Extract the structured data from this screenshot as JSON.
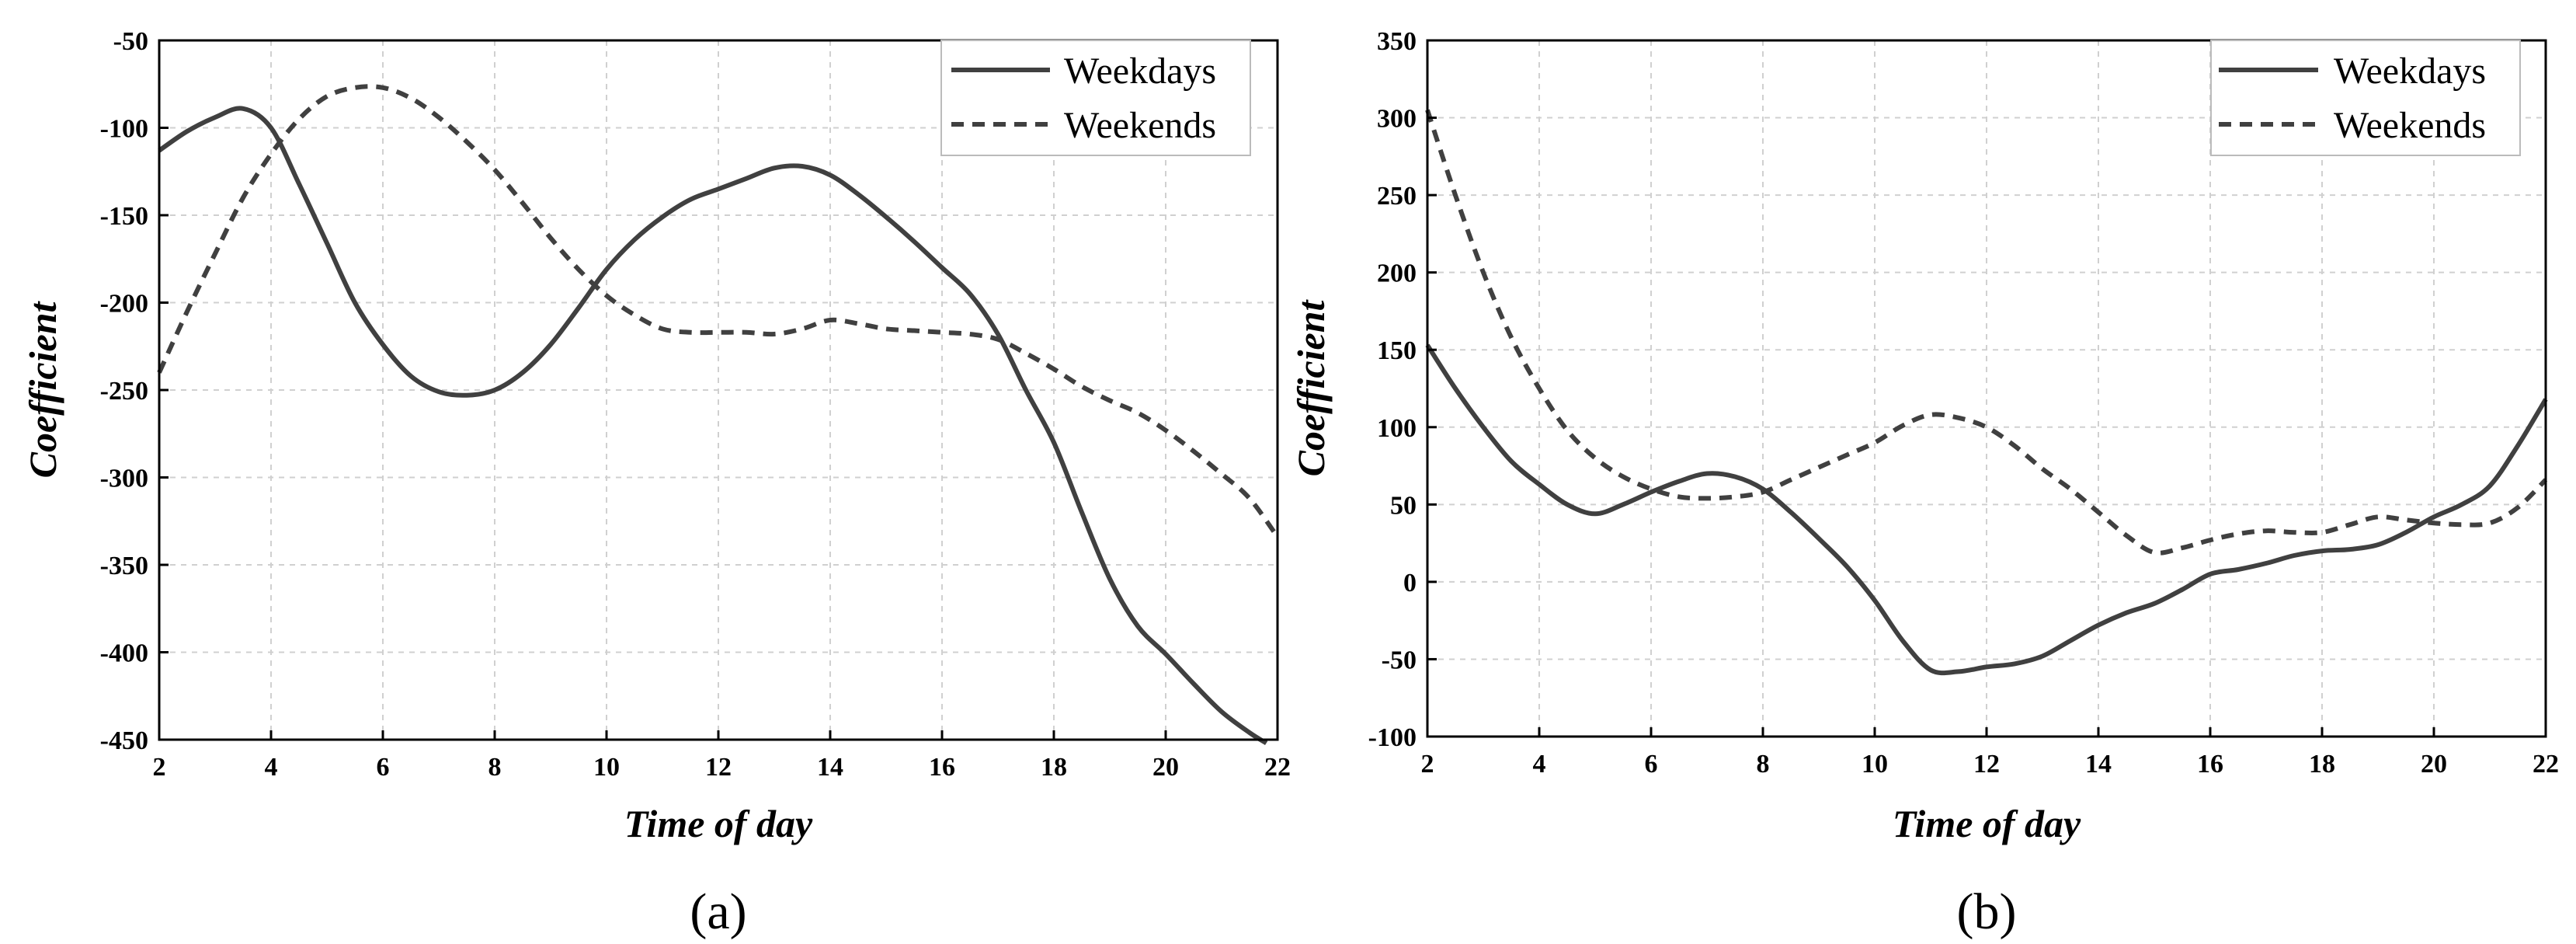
{
  "chart_data": [
    {
      "type": "line",
      "panel_label": "(a)",
      "xlabel": "Time of day",
      "ylabel": "Coefficient",
      "xlim": [
        2,
        22
      ],
      "ylim": [
        -450,
        -50
      ],
      "xticks": [
        2,
        4,
        6,
        8,
        10,
        12,
        14,
        16,
        18,
        20,
        22
      ],
      "yticks": [
        -50,
        -100,
        -150,
        -200,
        -250,
        -300,
        -350,
        -400,
        -450
      ],
      "grid": true,
      "legend_position": "top-right",
      "series": [
        {
          "name": "Weekdays",
          "style": "solid",
          "color": "#404040",
          "x": [
            2,
            2.5,
            3,
            3.5,
            4,
            4.5,
            5,
            5.5,
            6,
            6.5,
            7,
            7.5,
            8,
            8.5,
            9,
            9.5,
            10,
            10.5,
            11,
            11.5,
            12,
            12.5,
            13,
            13.5,
            14,
            14.5,
            15,
            15.5,
            16,
            16.5,
            17,
            17.5,
            18,
            18.5,
            19,
            19.5,
            20,
            20.5,
            21,
            21.5,
            21.8
          ],
          "values": [
            -113,
            -102,
            -94,
            -89,
            -100,
            -132,
            -166,
            -200,
            -224,
            -242,
            -251,
            -253,
            -250,
            -240,
            -224,
            -203,
            -181,
            -164,
            -151,
            -141,
            -135,
            -129,
            -123,
            -122,
            -127,
            -138,
            -151,
            -165,
            -180,
            -195,
            -218,
            -250,
            -280,
            -320,
            -358,
            -385,
            -401,
            -418,
            -434,
            -446,
            -452
          ]
        },
        {
          "name": "Weekends",
          "style": "dashed",
          "color": "#404040",
          "x": [
            2,
            2.5,
            3,
            3.5,
            4,
            4.5,
            5,
            5.5,
            6,
            6.5,
            7,
            7.5,
            8,
            8.5,
            9,
            9.5,
            10,
            10.5,
            11,
            11.5,
            12,
            12.5,
            13,
            13.5,
            14,
            14.5,
            15,
            15.5,
            16,
            16.5,
            17,
            17.5,
            18,
            18.5,
            19,
            19.5,
            20,
            20.5,
            21,
            21.5,
            22
          ],
          "values": [
            -240,
            -205,
            -172,
            -140,
            -115,
            -95,
            -82,
            -77,
            -77,
            -83,
            -94,
            -108,
            -124,
            -143,
            -163,
            -181,
            -196,
            -207,
            -215,
            -217,
            -217,
            -217,
            -218,
            -215,
            -210,
            -212,
            -215,
            -216,
            -217,
            -218,
            -221,
            -229,
            -238,
            -248,
            -256,
            -263,
            -273,
            -285,
            -298,
            -312,
            -334
          ]
        }
      ]
    },
    {
      "type": "line",
      "panel_label": "(b)",
      "xlabel": "Time of day",
      "ylabel": "Coefficient",
      "xlim": [
        2,
        22
      ],
      "ylim": [
        -100,
        350
      ],
      "xticks": [
        2,
        4,
        6,
        8,
        10,
        12,
        14,
        16,
        18,
        20,
        22
      ],
      "yticks": [
        350,
        300,
        250,
        200,
        150,
        100,
        50,
        0,
        -50,
        -100
      ],
      "grid": true,
      "legend_position": "top-right",
      "series": [
        {
          "name": "Weekdays",
          "style": "solid",
          "color": "#404040",
          "x": [
            2,
            2.5,
            3,
            3.5,
            4,
            4.5,
            5,
            5.5,
            6,
            6.5,
            7,
            7.5,
            8,
            8.5,
            9,
            9.5,
            10,
            10.5,
            11,
            11.5,
            12,
            12.5,
            13,
            13.5,
            14,
            14.5,
            15,
            15.5,
            16,
            16.5,
            17,
            17.5,
            18,
            18.5,
            19,
            19.5,
            20,
            20.5,
            21,
            21.5,
            22
          ],
          "values": [
            153,
            125,
            100,
            78,
            63,
            50,
            44,
            50,
            58,
            65,
            70,
            68,
            60,
            45,
            28,
            10,
            -12,
            -38,
            -57,
            -58,
            -55,
            -53,
            -48,
            -38,
            -28,
            -20,
            -14,
            -5,
            5,
            8,
            12,
            17,
            20,
            21,
            24,
            32,
            42,
            50,
            62,
            88,
            118
          ]
        },
        {
          "name": "Weekends",
          "style": "dashed",
          "color": "#404040",
          "x": [
            2,
            2.5,
            3,
            3.5,
            4,
            4.5,
            5,
            5.5,
            6,
            6.5,
            7,
            7.5,
            8,
            8.5,
            9,
            9.5,
            10,
            10.5,
            11,
            11.5,
            12,
            12.5,
            13,
            13.5,
            14,
            14.5,
            15,
            15.5,
            16,
            16.5,
            17,
            17.5,
            18,
            18.5,
            19,
            19.5,
            20,
            20.5,
            21,
            21.5,
            22
          ],
          "values": [
            305,
            250,
            200,
            158,
            125,
            98,
            80,
            68,
            60,
            55,
            54,
            55,
            58,
            66,
            74,
            82,
            90,
            101,
            108,
            106,
            100,
            88,
            73,
            60,
            45,
            30,
            19,
            22,
            27,
            31,
            33,
            32,
            32,
            37,
            42,
            40,
            38,
            37,
            38,
            48,
            66
          ]
        }
      ]
    }
  ]
}
